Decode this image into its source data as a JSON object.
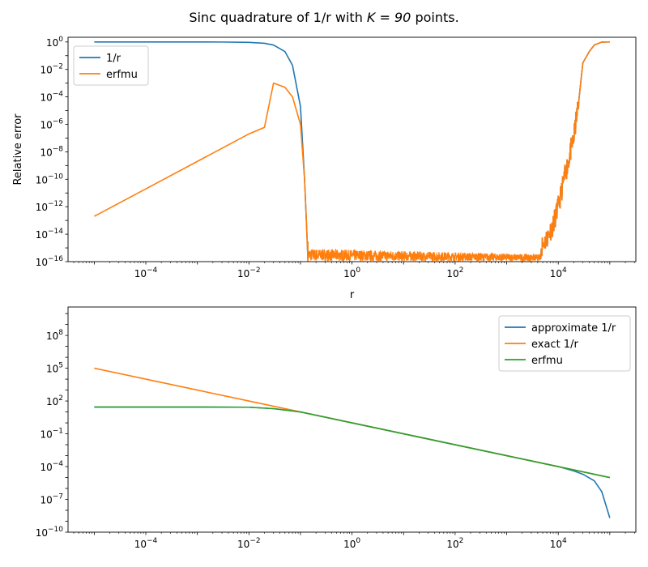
{
  "figure": {
    "title_prefix": "Sinc quadrature of 1/r with ",
    "title_math": "K = 90",
    "title_suffix": " points."
  },
  "chart_data": [
    {
      "type": "line",
      "title": "",
      "xlabel": "r",
      "ylabel": "Relative error",
      "xscale": "log",
      "yscale": "log",
      "xlim": [
        3.1e-06,
        320000.0
      ],
      "ylim": [
        1e-16,
        2.2
      ],
      "xticks": [
        {
          "exp": -4,
          "label": "10^-4"
        },
        {
          "exp": -2,
          "label": "10^-2"
        },
        {
          "exp": 0,
          "label": "10^0"
        },
        {
          "exp": 2,
          "label": "10^2"
        },
        {
          "exp": 4,
          "label": "10^4"
        }
      ],
      "yticks": [
        {
          "exp": 0,
          "label": "10^0"
        },
        {
          "exp": -2,
          "label": "10^-2"
        },
        {
          "exp": -4,
          "label": "10^-4"
        },
        {
          "exp": -6,
          "label": "10^-6"
        },
        {
          "exp": -8,
          "label": "10^-8"
        },
        {
          "exp": -10,
          "label": "10^-10"
        },
        {
          "exp": -12,
          "label": "10^-12"
        },
        {
          "exp": -14,
          "label": "10^-14"
        },
        {
          "exp": -16,
          "label": "10^-16"
        }
      ],
      "grid": false,
      "legend_loc": "upper left",
      "series": [
        {
          "name": "1/r",
          "color": "#1f77b4",
          "x": [
            1e-05,
            0.0001,
            0.001,
            0.003,
            0.01,
            0.02,
            0.03,
            0.05,
            0.07,
            0.1,
            0.12,
            0.13,
            0.14
          ],
          "y": [
            1.0,
            1.0,
            0.999,
            0.99,
            0.93,
            0.8,
            0.6,
            0.2,
            0.02,
            2e-05,
            1e-10,
            1e-13,
            1e-16
          ]
        },
        {
          "name": "erfmu",
          "color": "#ff7f0e",
          "x": [
            1e-05,
            0.0001,
            0.001,
            0.01,
            0.02,
            0.03,
            0.05,
            0.07,
            0.1,
            0.12,
            0.13,
            0.14
          ],
          "y": [
            2e-13,
            2e-11,
            2e-09,
            2e-07,
            6e-07,
            0.001,
            0.0005,
            0.0001,
            1e-06,
            1e-10,
            1e-13,
            1e-16
          ]
        }
      ],
      "noise_floor": {
        "x_from": 0.14,
        "x_to": 4600,
        "y_level": 4e-16
      },
      "right_rise": {
        "color": "#ff7f0e",
        "x": [
          4600,
          6000,
          8000,
          10000.0,
          13000.0,
          16000.0,
          20000.0,
          25000.0,
          30000.0,
          40000.0,
          50000.0,
          70000.0,
          100000.0
        ],
        "y": [
          1e-15,
          5e-15,
          5e-14,
          1e-12,
          1e-10,
          3e-09,
          1e-07,
          5e-05,
          0.03,
          0.2,
          0.6,
          0.98,
          1.0
        ]
      }
    },
    {
      "type": "line",
      "title": "",
      "xlabel": "",
      "ylabel": "",
      "xscale": "log",
      "yscale": "log",
      "xlim": [
        3.1e-06,
        320000.0
      ],
      "ylim": [
        1e-10,
        40000000000.0
      ],
      "xticks": [
        {
          "exp": -4,
          "label": "10^-4"
        },
        {
          "exp": -2,
          "label": "10^-2"
        },
        {
          "exp": 0,
          "label": "10^0"
        },
        {
          "exp": 2,
          "label": "10^2"
        },
        {
          "exp": 4,
          "label": "10^4"
        }
      ],
      "yticks": [
        {
          "exp": 8,
          "label": "10^8"
        },
        {
          "exp": 5,
          "label": "10^5"
        },
        {
          "exp": 2,
          "label": "10^2"
        },
        {
          "exp": -1,
          "label": "10^-1"
        },
        {
          "exp": -4,
          "label": "10^-4"
        },
        {
          "exp": -7,
          "label": "10^-7"
        },
        {
          "exp": -10,
          "label": "10^-10"
        }
      ],
      "grid": false,
      "legend_loc": "upper right",
      "series": [
        {
          "name": "approximate 1/r",
          "color": "#1f77b4",
          "x": [
            1e-05,
            0.0001,
            0.001,
            0.01,
            0.03,
            0.1,
            1,
            10,
            100,
            1000,
            10000.0,
            20000.0,
            30000.0,
            50000.0,
            70000.0,
            100000.0
          ],
          "y": [
            28,
            28,
            28,
            27,
            20,
            10,
            1,
            0.1,
            0.01,
            0.001,
            0.0001,
            4e-05,
            2e-05,
            5e-06,
            5e-07,
            2e-09
          ]
        },
        {
          "name": "exact 1/r",
          "color": "#ff7f0e",
          "x": [
            1e-05,
            0.0001,
            0.001,
            0.01,
            0.1,
            1,
            10,
            100,
            1000,
            10000.0,
            100000.0
          ],
          "y": [
            100000.0,
            10000.0,
            1000.0,
            100,
            10,
            1,
            0.1,
            0.01,
            0.001,
            0.0001,
            1e-05
          ]
        },
        {
          "name": "erfmu",
          "color": "#2ca02c",
          "x": [
            1e-05,
            0.0001,
            0.001,
            0.01,
            0.03,
            0.1,
            1,
            10,
            100,
            1000,
            10000.0,
            100000.0
          ],
          "y": [
            28,
            28,
            28,
            27,
            20,
            10,
            1,
            0.1,
            0.01,
            0.001,
            0.0001,
            1e-05
          ]
        }
      ]
    }
  ]
}
